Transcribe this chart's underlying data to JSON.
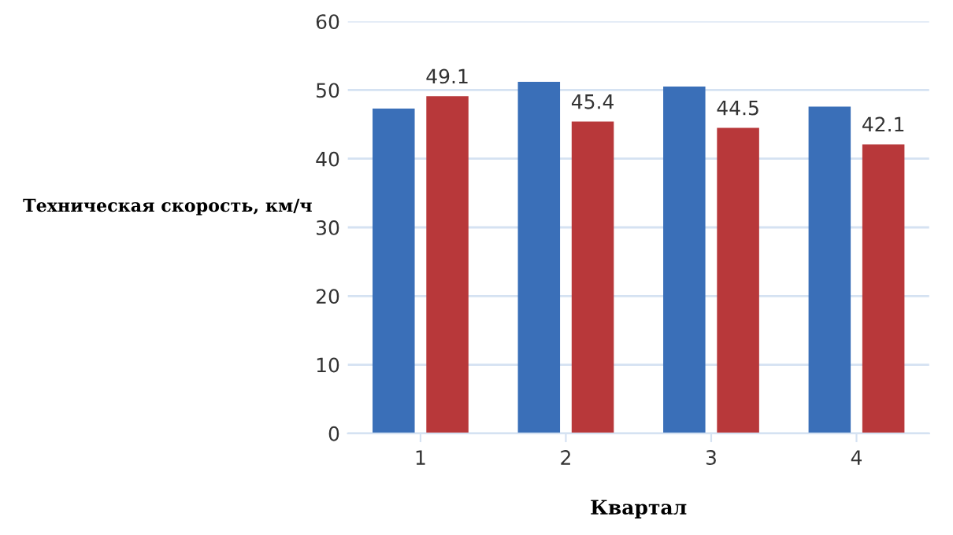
{
  "chart_data": {
    "type": "bar",
    "xlabel": "Квартал",
    "ylabel": "Техническая скорость, км/ч",
    "categories": [
      "1",
      "2",
      "3",
      "4"
    ],
    "series": [
      {
        "color": "#3a6fb8",
        "values": [
          47.3,
          51.2,
          50.5,
          47.6
        ]
      },
      {
        "color": "#b8383a",
        "values": [
          49.1,
          45.4,
          44.5,
          42.1
        ],
        "value_labels": [
          "49.1",
          "45.4",
          "44.5",
          "42.1"
        ]
      }
    ],
    "ylim": [
      0,
      60
    ],
    "yticks": [
      0,
      10,
      20,
      30,
      40,
      50,
      60
    ],
    "grid": "y",
    "legend": false
  }
}
